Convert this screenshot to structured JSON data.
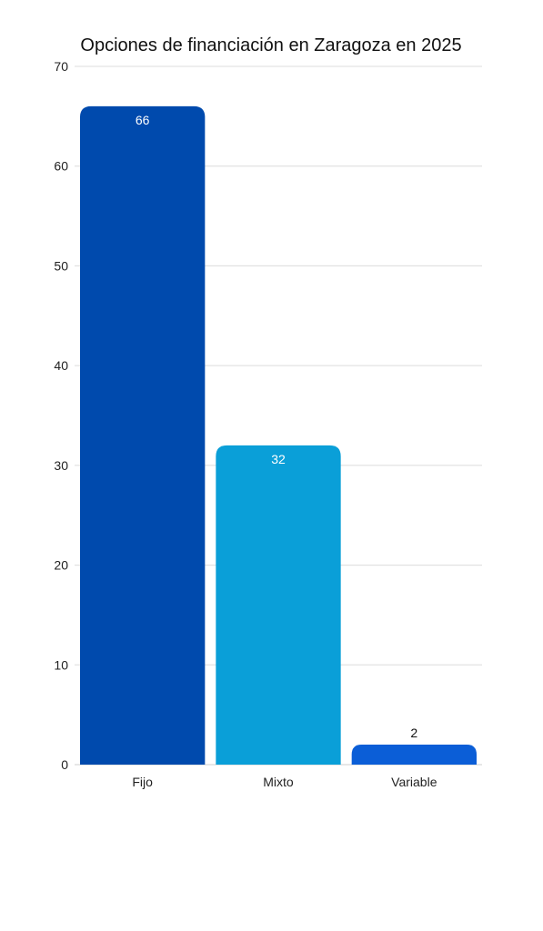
{
  "chart_data": {
    "type": "bar",
    "title": "Opciones de financiación en Zaragoza en 2025",
    "xlabel": "",
    "ylabel": "",
    "categories": [
      "Fijo",
      "Mixto",
      "Variable"
    ],
    "values": [
      66,
      32,
      2
    ],
    "value_labels": [
      "66",
      "32",
      "2"
    ],
    "ylim": [
      0,
      70
    ],
    "yticks": [
      0,
      10,
      20,
      30,
      40,
      50,
      60,
      70
    ],
    "ytick_labels": [
      "0",
      "10",
      "20",
      "30",
      "40",
      "50",
      "60",
      "70"
    ],
    "grid": true,
    "legend": "none",
    "colors": [
      "#004aad",
      "#0a9fd8",
      "#0b5ed7"
    ],
    "data_label_colors": [
      "#ffffff",
      "#ffffff",
      "#111111"
    ]
  }
}
